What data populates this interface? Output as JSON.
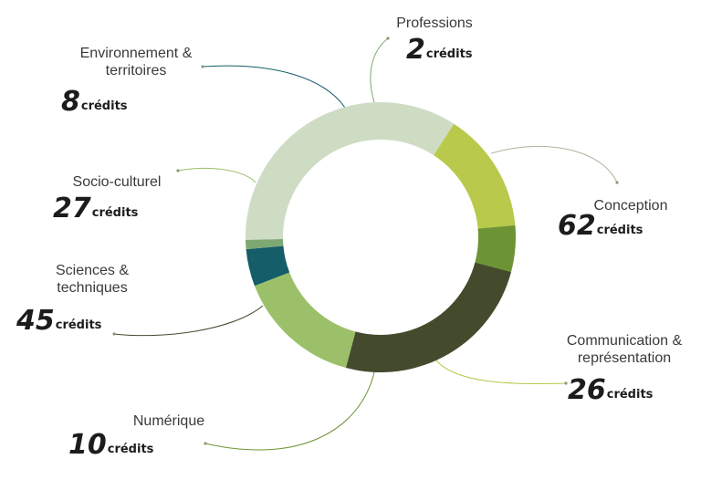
{
  "unit_label": "crédits",
  "chart_data": {
    "type": "pie",
    "title": "",
    "categories": [
      "Conception",
      "Communication & représentation",
      "Numérique",
      "Sciences & techniques",
      "Socio-culturel",
      "Environnement & territoires",
      "Professions"
    ],
    "values": [
      62,
      26,
      10,
      45,
      27,
      8,
      2
    ],
    "colors": [
      "#cfdcc4",
      "#b8c94b",
      "#6d9434",
      "#434b2c",
      "#9cc06a",
      "#145d69",
      "#7ea872"
    ],
    "labels": [
      {
        "lines": [
          "Conception"
        ],
        "value": "62"
      },
      {
        "lines": [
          "Communication &",
          "représentation"
        ],
        "value": "26"
      },
      {
        "lines": [
          "Numérique"
        ],
        "value": "10"
      },
      {
        "lines": [
          "Sciences &",
          "techniques"
        ],
        "value": "45"
      },
      {
        "lines": [
          "Socio-culturel"
        ],
        "value": "27"
      },
      {
        "lines": [
          "Environnement &",
          "territoires"
        ],
        "value": "8"
      },
      {
        "lines": [
          "Professions"
        ],
        "value": "2"
      }
    ]
  }
}
